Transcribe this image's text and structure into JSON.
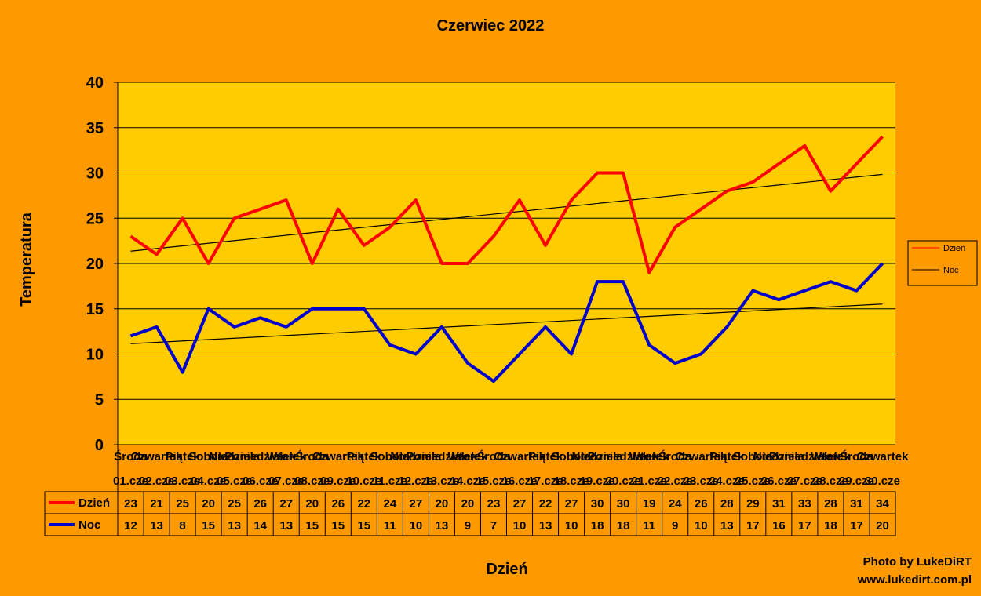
{
  "chart_data": {
    "type": "line",
    "title": "Czerwiec 2022",
    "xlabel": "Dzień",
    "ylabel": "Temperatura",
    "ylim": [
      0,
      40
    ],
    "yticks": [
      0,
      5,
      10,
      15,
      20,
      25,
      30,
      35,
      40
    ],
    "grid": true,
    "legend_position": "right",
    "categories": [
      [
        "Środa",
        "01.cze"
      ],
      [
        "Czwartek",
        "02.cze"
      ],
      [
        "Piątek",
        "03.cze"
      ],
      [
        "Sobota",
        "04.cze"
      ],
      [
        "Niedziela",
        "05.cze"
      ],
      [
        "Poniedziałek",
        "06.cze"
      ],
      [
        "Wtorek",
        "07.cze"
      ],
      [
        "Środa",
        "08.cze"
      ],
      [
        "Czwartek",
        "09.cze"
      ],
      [
        "Piątek",
        "10.cze"
      ],
      [
        "Sobota",
        "11.cze"
      ],
      [
        "Niedziela",
        "12.cze"
      ],
      [
        "Poniedziałek",
        "13.cze"
      ],
      [
        "Wtorek",
        "14.cze"
      ],
      [
        "Środa",
        "15.cze"
      ],
      [
        "Czwartek",
        "16.cze"
      ],
      [
        "Piątek",
        "17.cze"
      ],
      [
        "Sobota",
        "18.cze"
      ],
      [
        "Niedziela",
        "19.cze"
      ],
      [
        "Poniedziałek",
        "20.cze"
      ],
      [
        "Wtorek",
        "21.cze"
      ],
      [
        "Środa",
        "22.cze"
      ],
      [
        "Czwartek",
        "23.cze"
      ],
      [
        "Piątek",
        "24.cze"
      ],
      [
        "Sobota",
        "25.cze"
      ],
      [
        "Niedziela",
        "26.cze"
      ],
      [
        "Poniedziałek",
        "27.cze"
      ],
      [
        "Wtorek",
        "28.cze"
      ],
      [
        "Środa",
        "29.cze"
      ],
      [
        "Czwartek",
        "30.cze"
      ]
    ],
    "series": [
      {
        "name": "Dzień",
        "color": "#FF0000",
        "values": [
          23,
          21,
          25,
          20,
          25,
          26,
          27,
          20,
          26,
          22,
          24,
          27,
          20,
          20,
          23,
          27,
          22,
          27,
          30,
          30,
          19,
          24,
          26,
          28,
          29,
          31,
          33,
          28,
          31,
          34
        ]
      },
      {
        "name": "Noc",
        "color": "#0000CC",
        "values": [
          12,
          13,
          8,
          15,
          13,
          14,
          13,
          15,
          15,
          15,
          11,
          10,
          13,
          9,
          7,
          10,
          13,
          10,
          18,
          18,
          11,
          9,
          10,
          13,
          17,
          16,
          17,
          18,
          17,
          20
        ]
      }
    ],
    "trendlines": [
      {
        "series": "Dzień",
        "color": "#000000"
      },
      {
        "series": "Noc",
        "color": "#000000"
      }
    ]
  },
  "credits": {
    "line1": "Photo by LukeDiRT",
    "line2": "www.lukedirt.com.pl"
  }
}
